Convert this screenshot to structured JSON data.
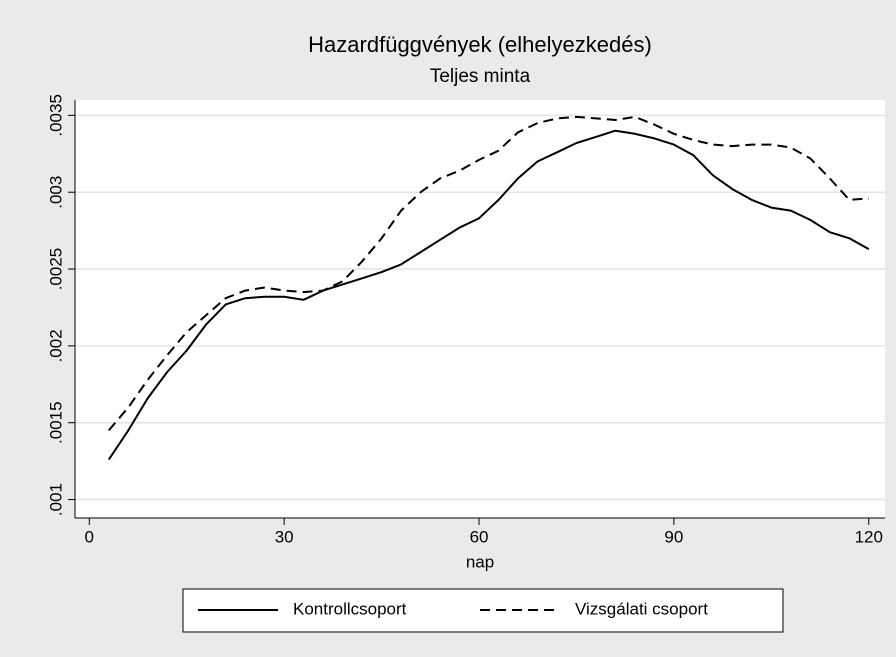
{
  "chart_data": {
    "type": "line",
    "title": "Hazardfüggvények (elhelyezkedés)",
    "subtitle": "Teljes minta",
    "x_label": "nap",
    "x": [
      3,
      6,
      9,
      12,
      15,
      18,
      21,
      24,
      27,
      30,
      33,
      36,
      39,
      42,
      45,
      48,
      51,
      54,
      57,
      60,
      63,
      66,
      69,
      72,
      75,
      78,
      81,
      84,
      87,
      90,
      93,
      96,
      99,
      102,
      105,
      108,
      111,
      114,
      117,
      120
    ],
    "series": [
      {
        "name": "Kontrollcsoport",
        "color": "#000000",
        "style": "solid",
        "values": [
          0.00126,
          0.00145,
          0.00166,
          0.00183,
          0.00197,
          0.00214,
          0.00227,
          0.00231,
          0.00232,
          0.00232,
          0.0023,
          0.00236,
          0.0024,
          0.00244,
          0.00248,
          0.00253,
          0.00261,
          0.00269,
          0.00277,
          0.00283,
          0.00295,
          0.00309,
          0.0032,
          0.00326,
          0.00332,
          0.00336,
          0.0034,
          0.00338,
          0.00335,
          0.00331,
          0.00324,
          0.00311,
          0.00302,
          0.00295,
          0.0029,
          0.00288,
          0.00282,
          0.00274,
          0.0027,
          0.00263
        ]
      },
      {
        "name": "Vizsgálati csoport",
        "color": "#000000",
        "style": "dashed",
        "values": [
          0.00145,
          0.0016,
          0.00178,
          0.00194,
          0.00209,
          0.0022,
          0.00231,
          0.00236,
          0.00238,
          0.00236,
          0.00235,
          0.00236,
          0.00242,
          0.00255,
          0.0027,
          0.00288,
          0.003,
          0.00309,
          0.00314,
          0.00321,
          0.00327,
          0.00339,
          0.00345,
          0.00348,
          0.00349,
          0.00348,
          0.00347,
          0.00349,
          0.00344,
          0.00338,
          0.00334,
          0.00331,
          0.0033,
          0.00331,
          0.00331,
          0.00329,
          0.00322,
          0.00309,
          0.00295,
          0.00296
        ]
      }
    ],
    "xlim": [
      -2.2,
      122.5
    ],
    "xticks": [
      0,
      30,
      60,
      90,
      120
    ],
    "ylim": [
      0.00088,
      0.0036
    ],
    "yticks": [
      {
        "value": 0.001,
        "label": ".001"
      },
      {
        "value": 0.0015,
        "label": ".0015"
      },
      {
        "value": 0.002,
        "label": ".002"
      },
      {
        "value": 0.0025,
        "label": ".0025"
      },
      {
        "value": 0.003,
        "label": ".003"
      },
      {
        "value": 0.0035,
        "label": ".0035"
      }
    ],
    "grid": true,
    "legend": "bottom"
  }
}
